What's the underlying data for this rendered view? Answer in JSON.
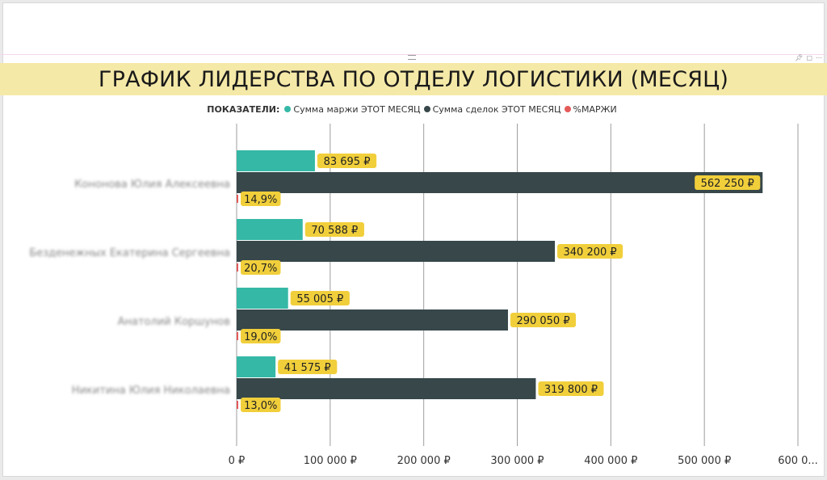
{
  "colors": {
    "margin_sum": "#35b8a6",
    "deals_sum": "#37474a",
    "margin_pct": "#e45a5a",
    "label_bg": "#f1cf3b",
    "title_bg": "#f5e9a8",
    "gridline": "#9e9e9e"
  },
  "header_icons": [
    "pin-icon",
    "focus-mode-icon",
    "more-options-icon"
  ],
  "chart_data": {
    "type": "bar",
    "orientation": "horizontal",
    "title": "ГРАФИК ЛИДЕРСТВА ПО ОТДЕЛУ ЛОГИСТИКИ (МЕСЯЦ)",
    "legend": {
      "title": "ПОКАЗАТЕЛИ:",
      "placement": "top-center"
    },
    "categories": [
      "Кононова Юлия Алексеевна",
      "Безденежных Екатерина Сергеевна",
      "Анатолий Коршунов",
      "Никитина Юлия Николаевна"
    ],
    "series": [
      {
        "name": "Сумма маржи ЭТОТ МЕСЯЦ",
        "values": [
          83695,
          70588,
          55005,
          41575
        ],
        "labels": [
          "83 695 ₽",
          "70 588 ₽",
          "55 005 ₽",
          "41 575 ₽"
        ]
      },
      {
        "name": "Сумма сделок ЭТОТ МЕСЯЦ",
        "values": [
          562250,
          340200,
          290050,
          319800
        ],
        "labels": [
          "562 250 ₽",
          "340 200 ₽",
          "290 050 ₽",
          "319 800 ₽"
        ]
      },
      {
        "name": "%МАРЖИ",
        "values": [
          14.9,
          20.7,
          19.0,
          13.0
        ],
        "labels": [
          "14,9%",
          "20,7%",
          "19,0%",
          "13,0%"
        ]
      }
    ],
    "xlim": [
      0,
      600000
    ],
    "xticks": [
      0,
      100000,
      200000,
      300000,
      400000,
      500000,
      600000
    ],
    "xtick_labels": [
      "0 ₽",
      "100 000 ₽",
      "200 000 ₽",
      "300 000 ₽",
      "400 000 ₽",
      "500 000 ₽",
      "600 0..."
    ],
    "grid": true
  }
}
